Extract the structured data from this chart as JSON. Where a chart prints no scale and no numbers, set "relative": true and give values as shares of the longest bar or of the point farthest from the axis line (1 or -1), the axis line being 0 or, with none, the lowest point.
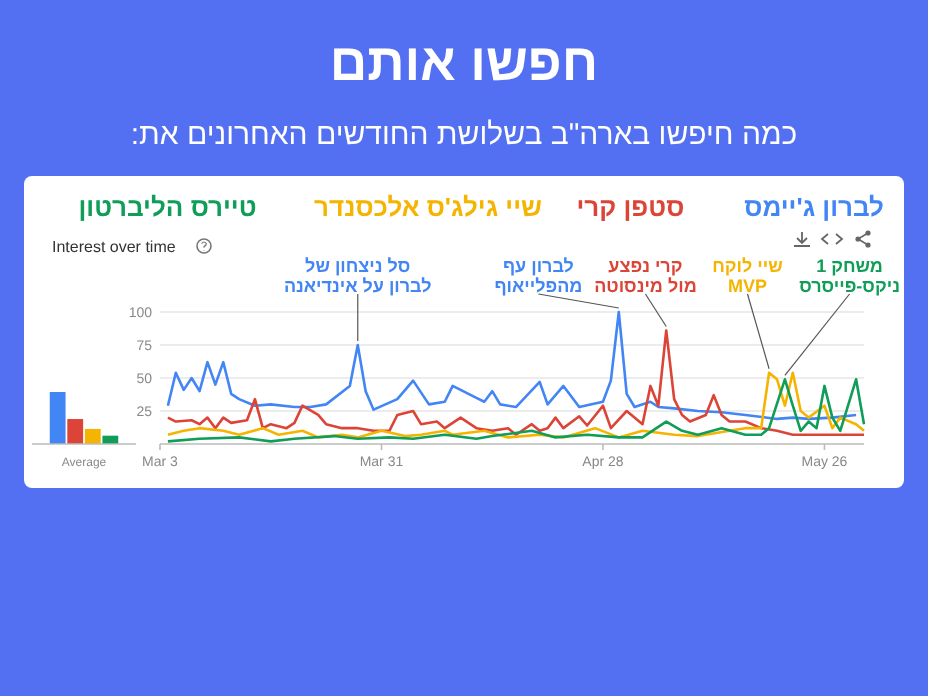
{
  "chart_data": [
    {
      "type": "line",
      "title": "חפשו אותם",
      "subtitle": "כמה חיפשו בארה\"ב בשלושת החודשים האחרונים את:",
      "xlim": [
        "--03-03",
        "--05-31"
      ],
      "xticks": [
        {
          "value": "--03-03",
          "label": "Mar 3"
        },
        {
          "value": "--03-31",
          "label": "Mar 31"
        },
        {
          "value": "--04-28",
          "label": "Apr 28"
        },
        {
          "value": "--05-26",
          "label": "May 26"
        }
      ],
      "ylim": [
        0,
        100
      ],
      "yticks": [
        25,
        50,
        75,
        100
      ],
      "grid": "y",
      "legend": "top",
      "annotations": [
        "Interest over time",
        {
          "text": "סל ניצחון של לברון על אינדיאנה",
          "x": "--03-28",
          "y": 75
        },
        {
          "text": "לברון עף מהפלייאוף",
          "x": "--04-30",
          "y": 100
        },
        {
          "text": "קרי נפצע מול מינסוטה",
          "x": "--05-06",
          "y": 86
        },
        {
          "text": "שיי לוקח MVP",
          "x": "--05-19",
          "y": 54
        },
        {
          "text": "משחק 1 ניקס-פייסרס",
          "x": "--05-21",
          "y": 49
        }
      ],
      "series": [
        {
          "name": "לברון ג'יימס",
          "color": "#4285f4",
          "x": [
            "--03-04",
            "--03-05",
            "--03-06",
            "--03-07",
            "--03-08",
            "--03-09",
            "--03-10",
            "--03-11",
            "--03-12",
            "--03-13",
            "--03-15",
            "--03-17",
            "--03-20",
            "--03-22",
            "--03-24",
            "--03-27",
            "--03-28",
            "--03-29",
            "--03-30",
            "--04-02",
            "--04-04",
            "--04-06",
            "--04-08",
            "--04-09",
            "--04-12",
            "--04-13",
            "--04-14",
            "--04-15",
            "--04-17",
            "--04-20",
            "--04-21",
            "--04-23",
            "--04-25",
            "--04-28",
            "--04-29",
            "--04-30",
            "--05-01",
            "--05-02",
            "--05-04",
            "--05-05",
            "--05-07",
            "--05-10",
            "--05-13",
            "--05-16",
            "--05-20",
            "--05-22",
            "--05-24",
            "--05-27",
            "--05-30"
          ],
          "values": [
            29,
            54,
            41,
            50,
            40,
            62,
            45,
            62,
            38,
            34,
            29,
            30,
            28,
            28,
            30,
            44,
            75,
            40,
            26,
            34,
            48,
            30,
            32,
            44,
            35,
            32,
            40,
            30,
            28,
            47,
            30,
            44,
            28,
            32,
            48,
            100,
            38,
            28,
            32,
            28,
            27,
            25,
            24,
            22,
            19,
            20,
            19,
            20,
            22
          ]
        },
        {
          "name": "סטפן קרי",
          "color": "#db4437",
          "x": [
            "--03-04",
            "--03-05",
            "--03-07",
            "--03-08",
            "--03-09",
            "--03-10",
            "--03-11",
            "--03-12",
            "--03-14",
            "--03-15",
            "--03-16",
            "--03-17",
            "--03-19",
            "--03-20",
            "--03-21",
            "--03-23",
            "--03-24",
            "--03-26",
            "--03-28",
            "--03-30",
            "--04-01",
            "--04-02",
            "--04-04",
            "--04-05",
            "--04-07",
            "--04-08",
            "--04-10",
            "--04-12",
            "--04-14",
            "--04-16",
            "--04-17",
            "--04-19",
            "--04-20",
            "--04-21",
            "--04-22",
            "--04-23",
            "--04-25",
            "--04-26",
            "--04-28",
            "--04-29",
            "--05-01",
            "--05-03",
            "--05-04",
            "--05-05",
            "--05-06",
            "--05-07",
            "--05-08",
            "--05-09",
            "--05-11",
            "--05-12",
            "--05-13",
            "--05-14",
            "--05-16",
            "--05-18",
            "--05-20",
            "--05-22",
            "--05-24",
            "--05-27",
            "--05-31"
          ],
          "values": [
            20,
            17,
            18,
            15,
            20,
            12,
            20,
            16,
            18,
            34,
            12,
            15,
            12,
            16,
            29,
            22,
            15,
            12,
            12,
            10,
            10,
            22,
            25,
            15,
            17,
            12,
            20,
            12,
            10,
            12,
            7,
            15,
            10,
            12,
            20,
            12,
            21,
            14,
            29,
            12,
            25,
            15,
            44,
            29,
            86,
            34,
            22,
            17,
            22,
            37,
            22,
            17,
            17,
            12,
            10,
            7,
            7,
            7,
            7
          ]
        },
        {
          "name": "שיי גילג'ס אלכסנדר",
          "color": "#f4b400",
          "x": [
            "--03-04",
            "--03-06",
            "--03-08",
            "--03-11",
            "--03-13",
            "--03-16",
            "--03-18",
            "--03-21",
            "--03-23",
            "--03-26",
            "--03-28",
            "--03-31",
            "--04-03",
            "--04-05",
            "--04-08",
            "--04-09",
            "--04-13",
            "--04-16",
            "--04-20",
            "--04-23",
            "--04-27",
            "--04-30",
            "--05-03",
            "--05-07",
            "--05-10",
            "--05-14",
            "--05-16",
            "--05-18",
            "--05-19",
            "--05-20",
            "--05-21",
            "--05-22",
            "--05-23",
            "--05-24",
            "--05-26",
            "--05-27",
            "--05-28",
            "--05-30",
            "--05-31"
          ],
          "values": [
            7,
            10,
            12,
            10,
            7,
            12,
            7,
            10,
            5,
            7,
            5,
            10,
            6,
            7,
            10,
            7,
            10,
            5,
            7,
            5,
            12,
            5,
            10,
            7,
            6,
            10,
            12,
            12,
            54,
            49,
            29,
            54,
            25,
            20,
            29,
            12,
            20,
            15,
            10
          ]
        },
        {
          "name": "טיירס הליברטון",
          "color": "#0f9d58",
          "x": [
            "--03-04",
            "--03-08",
            "--03-13",
            "--03-17",
            "--03-20",
            "--03-25",
            "--03-28",
            "--04-01",
            "--04-04",
            "--04-08",
            "--04-12",
            "--04-14",
            "--04-19",
            "--04-22",
            "--04-26",
            "--04-30",
            "--05-03",
            "--05-06",
            "--05-08",
            "--05-10",
            "--05-13",
            "--05-16",
            "--05-18",
            "--05-19",
            "--05-21",
            "--05-22",
            "--05-23",
            "--05-24",
            "--05-25",
            "--05-26",
            "--05-27",
            "--05-28",
            "--05-30",
            "--05-31"
          ],
          "values": [
            2,
            4,
            5,
            2,
            4,
            6,
            4,
            5,
            4,
            7,
            4,
            6,
            10,
            5,
            7,
            5,
            5,
            17,
            10,
            7,
            12,
            7,
            7,
            12,
            49,
            29,
            10,
            17,
            12,
            44,
            20,
            10,
            49,
            15
          ]
        }
      ]
    },
    {
      "type": "bar",
      "categories": [
        "Average"
      ],
      "relative": true,
      "series": [
        {
          "color": "#4285f4",
          "values": [
            1
          ]
        },
        {
          "color": "#db4437",
          "values": [
            0.48
          ]
        },
        {
          "color": "#f4b400",
          "values": [
            0.29
          ]
        },
        {
          "color": "#0f9d58",
          "values": [
            0.16
          ]
        }
      ]
    }
  ]
}
